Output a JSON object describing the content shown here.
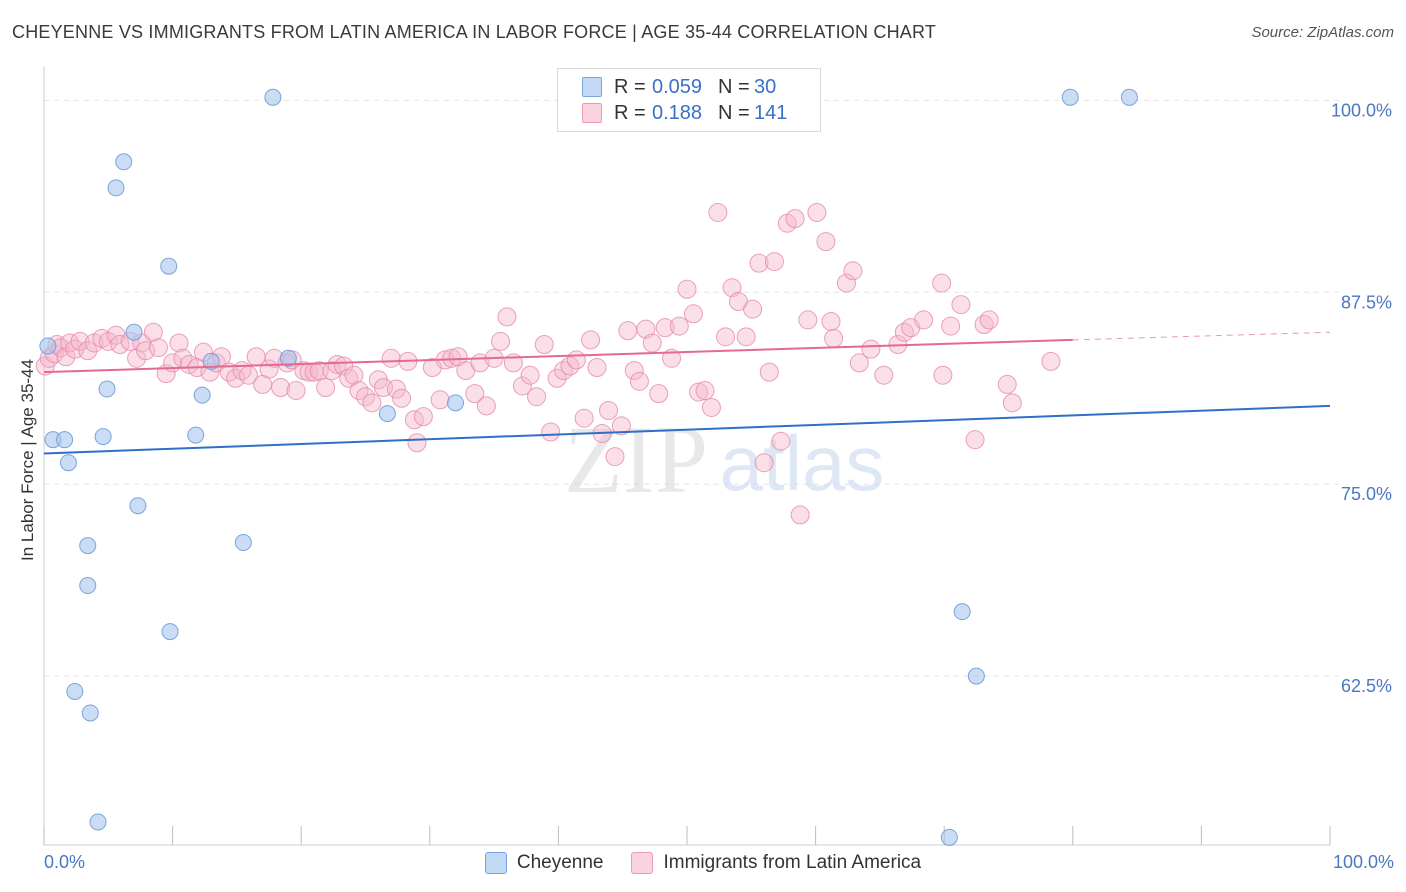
{
  "header": {
    "title": "CHEYENNE VS IMMIGRANTS FROM LATIN AMERICA IN LABOR FORCE | AGE 35-44 CORRELATION CHART",
    "source": "Source: ZipAtlas.com"
  },
  "legend": {
    "rows": [
      {
        "r_label": "R =",
        "r_value": "0.059",
        "n_label": "N =",
        "n_value": "30",
        "color": "#a9c6ee"
      },
      {
        "r_label": "R =",
        "r_value": "0.188",
        "n_label": "N =",
        "n_value": "141",
        "color": "#f5b7cb"
      }
    ]
  },
  "bottom_legend": {
    "cheyenne": "Cheyenne",
    "immigrants": "Immigrants from Latin America"
  },
  "colors": {
    "cheyenne_fill": "#a9c6ee",
    "cheyenne_stroke": "#6f9bd8",
    "cheyenne_line": "#2f6fc8",
    "immigrants_fill": "#f5b7cb",
    "immigrants_stroke": "#e68aa9",
    "immigrants_line": "#e26a93",
    "tick_text": "#4a78c2",
    "grid": "#e3e3e3"
  },
  "chart_data": {
    "type": "scatter",
    "title": "CHEYENNE VS IMMIGRANTS FROM LATIN AMERICA IN LABOR FORCE | AGE 35-44 CORRELATION CHART",
    "xlabel": "",
    "ylabel": "In Labor Force | Age 35-44",
    "xlim": [
      0,
      100
    ],
    "ylim": [
      51.5,
      102.5
    ],
    "x_tick_labels": [
      "0.0%",
      "100.0%"
    ],
    "y_ticks": [
      62.5,
      75.0,
      87.5,
      100.0
    ],
    "y_tick_labels": [
      "62.5%",
      "75.0%",
      "87.5%",
      "100.0%"
    ],
    "grid": true,
    "legend_position": "top-center",
    "watermark": {
      "zip": "ZIP",
      "atlas": "atlas"
    },
    "series": [
      {
        "name": "Cheyenne",
        "trend": {
          "x": [
            0,
            100
          ],
          "y": [
            77.0,
            80.1
          ]
        },
        "points": [
          [
            0.3,
            84.0
          ],
          [
            0.7,
            77.9
          ],
          [
            1.6,
            77.9
          ],
          [
            1.9,
            76.4
          ],
          [
            2.4,
            61.5
          ],
          [
            3.4,
            68.4
          ],
          [
            3.4,
            71.0
          ],
          [
            3.6,
            60.1
          ],
          [
            4.2,
            53.0
          ],
          [
            4.6,
            78.1
          ],
          [
            4.9,
            81.2
          ],
          [
            5.6,
            94.3
          ],
          [
            6.2,
            96.0
          ],
          [
            7.3,
            73.6
          ],
          [
            7.0,
            84.9
          ],
          [
            9.7,
            89.2
          ],
          [
            9.8,
            65.4
          ],
          [
            11.8,
            78.2
          ],
          [
            12.3,
            80.8
          ],
          [
            13.0,
            83.0
          ],
          [
            15.5,
            71.2
          ],
          [
            17.8,
            100.2
          ],
          [
            19.0,
            83.2
          ],
          [
            26.7,
            79.6
          ],
          [
            32.0,
            80.3
          ],
          [
            70.4,
            52.0
          ],
          [
            71.4,
            66.7
          ],
          [
            72.5,
            62.5
          ],
          [
            79.8,
            100.2
          ],
          [
            84.4,
            100.2
          ]
        ]
      },
      {
        "name": "Immigrants from Latin America",
        "trend": {
          "x": [
            0,
            80
          ],
          "y": [
            82.3,
            84.4
          ]
        },
        "trend_dashed": {
          "x": [
            80,
            100
          ],
          "y": [
            84.4,
            84.9
          ]
        },
        "points": [
          [
            0.1,
            82.7
          ],
          [
            0.4,
            83.2
          ],
          [
            0.8,
            83.5
          ],
          [
            1.0,
            84.1
          ],
          [
            1.3,
            83.9
          ],
          [
            1.7,
            83.3
          ],
          [
            2.0,
            84.2
          ],
          [
            2.4,
            83.8
          ],
          [
            2.8,
            84.3
          ],
          [
            3.4,
            83.7
          ],
          [
            3.9,
            84.2
          ],
          [
            4.5,
            84.5
          ],
          [
            5.0,
            84.3
          ],
          [
            5.6,
            84.7
          ],
          [
            5.9,
            84.1
          ],
          [
            6.7,
            84.3
          ],
          [
            7.2,
            83.2
          ],
          [
            7.6,
            84.2
          ],
          [
            7.9,
            83.7
          ],
          [
            8.5,
            84.9
          ],
          [
            8.9,
            83.9
          ],
          [
            9.5,
            82.2
          ],
          [
            10.0,
            82.9
          ],
          [
            10.5,
            84.2
          ],
          [
            10.8,
            83.2
          ],
          [
            11.3,
            82.8
          ],
          [
            11.9,
            82.6
          ],
          [
            12.4,
            83.6
          ],
          [
            12.9,
            82.3
          ],
          [
            13.4,
            82.9
          ],
          [
            13.8,
            83.3
          ],
          [
            14.4,
            82.3
          ],
          [
            14.9,
            81.9
          ],
          [
            15.4,
            82.4
          ],
          [
            15.9,
            82.1
          ],
          [
            16.5,
            83.3
          ],
          [
            17.0,
            81.5
          ],
          [
            17.5,
            82.5
          ],
          [
            17.9,
            83.2
          ],
          [
            18.4,
            81.3
          ],
          [
            18.9,
            82.9
          ],
          [
            19.3,
            83.1
          ],
          [
            19.6,
            81.1
          ],
          [
            20.2,
            82.4
          ],
          [
            20.6,
            82.3
          ],
          [
            21.0,
            82.3
          ],
          [
            21.4,
            82.4
          ],
          [
            21.9,
            81.3
          ],
          [
            22.4,
            82.4
          ],
          [
            22.8,
            82.8
          ],
          [
            23.3,
            82.7
          ],
          [
            23.7,
            81.9
          ],
          [
            24.1,
            82.1
          ],
          [
            24.5,
            81.1
          ],
          [
            25.0,
            80.7
          ],
          [
            25.5,
            80.3
          ],
          [
            26.0,
            81.8
          ],
          [
            26.4,
            81.3
          ],
          [
            27.0,
            83.2
          ],
          [
            27.4,
            81.2
          ],
          [
            27.8,
            80.6
          ],
          [
            28.3,
            83.0
          ],
          [
            28.8,
            79.2
          ],
          [
            29.0,
            77.7
          ],
          [
            29.5,
            79.4
          ],
          [
            30.2,
            82.6
          ],
          [
            30.8,
            80.5
          ],
          [
            31.2,
            83.1
          ],
          [
            31.7,
            83.2
          ],
          [
            32.2,
            83.3
          ],
          [
            32.8,
            82.4
          ],
          [
            33.5,
            80.9
          ],
          [
            33.9,
            82.9
          ],
          [
            34.4,
            80.1
          ],
          [
            35.0,
            83.2
          ],
          [
            35.5,
            84.3
          ],
          [
            36.0,
            85.9
          ],
          [
            36.5,
            82.9
          ],
          [
            37.2,
            81.4
          ],
          [
            37.8,
            82.1
          ],
          [
            38.3,
            80.7
          ],
          [
            38.9,
            84.1
          ],
          [
            39.4,
            78.4
          ],
          [
            39.9,
            81.9
          ],
          [
            40.4,
            82.4
          ],
          [
            40.9,
            82.7
          ],
          [
            41.4,
            83.1
          ],
          [
            42.0,
            79.3
          ],
          [
            42.5,
            84.4
          ],
          [
            43.0,
            82.6
          ],
          [
            43.4,
            78.3
          ],
          [
            43.9,
            79.8
          ],
          [
            44.4,
            76.8
          ],
          [
            44.9,
            78.8
          ],
          [
            45.4,
            85.0
          ],
          [
            45.9,
            82.4
          ],
          [
            46.3,
            81.7
          ],
          [
            46.8,
            85.1
          ],
          [
            47.3,
            84.2
          ],
          [
            47.8,
            80.9
          ],
          [
            48.3,
            85.2
          ],
          [
            48.8,
            83.2
          ],
          [
            49.4,
            85.3
          ],
          [
            50.0,
            87.7
          ],
          [
            50.5,
            86.1
          ],
          [
            50.9,
            81.0
          ],
          [
            51.4,
            81.1
          ],
          [
            51.9,
            80.0
          ],
          [
            52.4,
            92.7
          ],
          [
            53.0,
            84.6
          ],
          [
            53.5,
            87.8
          ],
          [
            54.0,
            86.9
          ],
          [
            54.6,
            84.6
          ],
          [
            55.1,
            86.4
          ],
          [
            55.6,
            89.4
          ],
          [
            56.0,
            76.4
          ],
          [
            56.4,
            82.3
          ],
          [
            56.8,
            89.5
          ],
          [
            57.3,
            77.8
          ],
          [
            57.8,
            92.0
          ],
          [
            58.4,
            92.3
          ],
          [
            58.8,
            73.0
          ],
          [
            59.4,
            85.7
          ],
          [
            60.1,
            92.7
          ],
          [
            60.8,
            90.8
          ],
          [
            61.2,
            85.6
          ],
          [
            61.4,
            84.5
          ],
          [
            62.4,
            88.1
          ],
          [
            62.9,
            88.9
          ],
          [
            63.4,
            82.9
          ],
          [
            64.3,
            83.8
          ],
          [
            65.3,
            82.1
          ],
          [
            66.4,
            84.1
          ],
          [
            66.9,
            84.9
          ],
          [
            67.4,
            85.2
          ],
          [
            68.4,
            85.7
          ],
          [
            69.8,
            88.1
          ],
          [
            69.9,
            82.1
          ],
          [
            70.5,
            85.3
          ],
          [
            71.3,
            86.7
          ],
          [
            72.4,
            77.9
          ],
          [
            73.1,
            85.4
          ],
          [
            73.5,
            85.7
          ],
          [
            74.9,
            81.5
          ],
          [
            75.3,
            80.3
          ],
          [
            78.3,
            83.0
          ]
        ]
      }
    ]
  }
}
